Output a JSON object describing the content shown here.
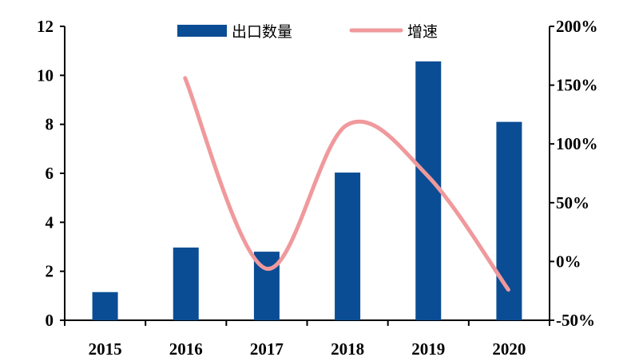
{
  "chart_data": {
    "type": "bar+line",
    "title": "",
    "xlabel": "",
    "ylabel": "",
    "categories": [
      "2015",
      "2016",
      "2017",
      "2018",
      "2019",
      "2020"
    ],
    "series": [
      {
        "name": "出口数量",
        "type": "bar",
        "axis": "left",
        "color": "#0a4d94",
        "values": [
          1.15,
          2.97,
          2.8,
          6.03,
          10.57,
          8.1
        ]
      },
      {
        "name": "增速",
        "type": "line",
        "axis": "right",
        "smooth": true,
        "color": "#f0999c",
        "values": [
          null,
          156,
          -6,
          116,
          73,
          -24
        ]
      }
    ],
    "ylim_left": [
      0,
      12
    ],
    "yticks_left": [
      "0",
      "2",
      "4",
      "6",
      "8",
      "10",
      "12"
    ],
    "ylim_right": [
      -50,
      200
    ],
    "yticks_right": [
      "-50%",
      "0%",
      "50%",
      "100%",
      "150%",
      "200%"
    ],
    "grid": false,
    "legend_position": "top"
  }
}
